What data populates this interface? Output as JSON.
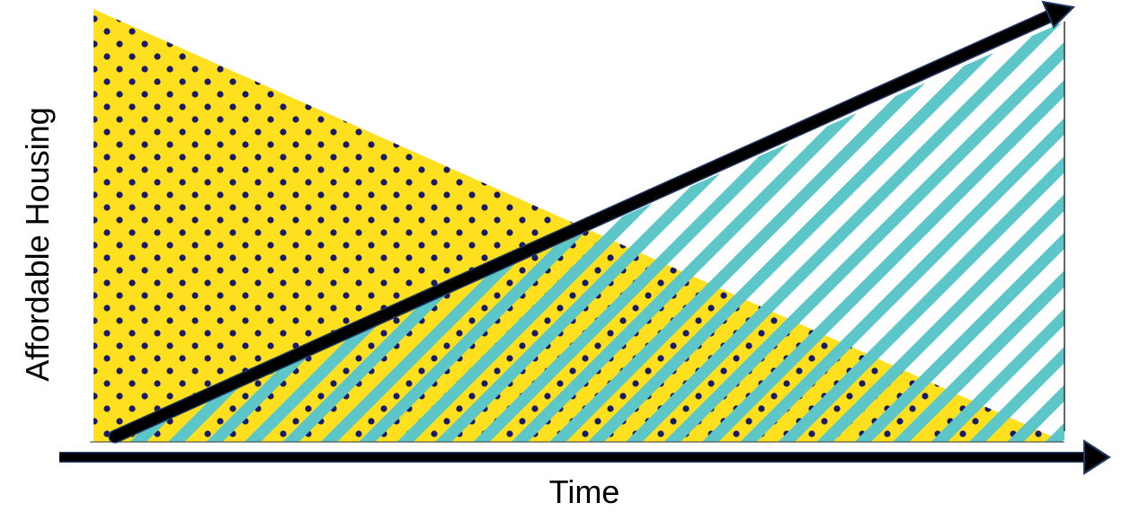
{
  "diagram": {
    "x_axis_label": "Time",
    "y_axis_label": "Affordable Housing"
  },
  "colors": {
    "yellow_fill": "#ffe01e",
    "dot": "#1a1a66",
    "teal_stripe": "#5cc6c8",
    "arrow": "#000000",
    "arrow_outline": "#1f3864",
    "frame": "#333333"
  }
}
